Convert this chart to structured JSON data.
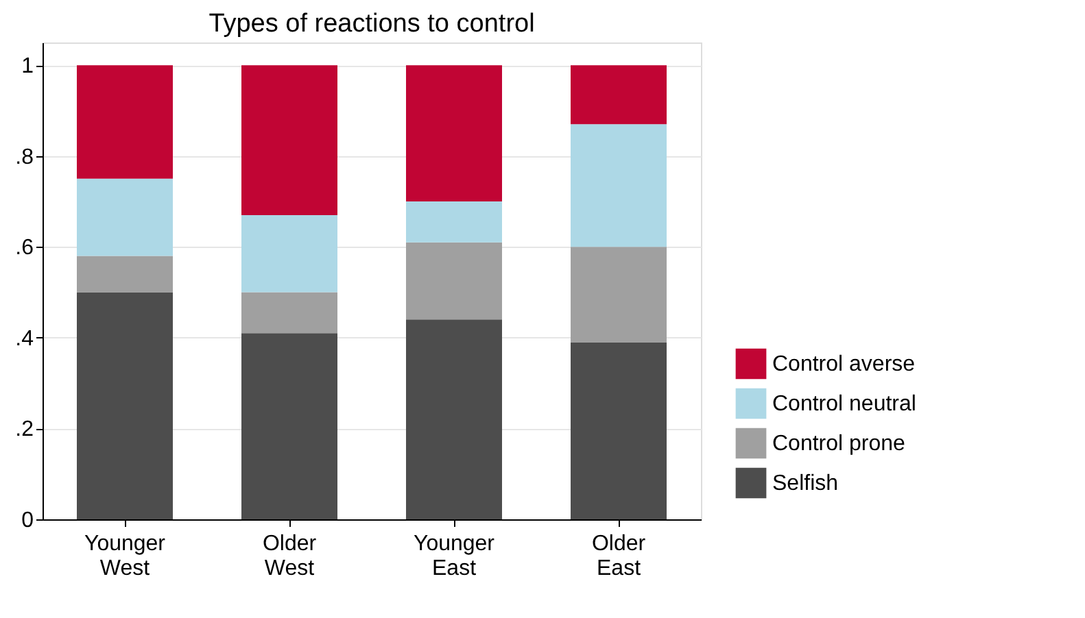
{
  "chart_data": {
    "type": "bar",
    "title": "Types of reactions to control",
    "stacked": true,
    "categories": [
      "Younger West",
      "Older West",
      "Younger East",
      "Older East"
    ],
    "series": [
      {
        "name": "Selfish",
        "color": "#4d4d4d",
        "values": [
          0.5,
          0.41,
          0.44,
          0.39
        ]
      },
      {
        "name": "Control prone",
        "color": "#a0a0a0",
        "values": [
          0.08,
          0.09,
          0.17,
          0.21
        ]
      },
      {
        "name": "Control neutral",
        "color": "#add8e6",
        "values": [
          0.17,
          0.17,
          0.09,
          0.27
        ]
      },
      {
        "name": "Control averse",
        "color": "#c10534",
        "values": [
          0.25,
          0.33,
          0.3,
          0.13
        ]
      }
    ],
    "ylim": [
      0,
      1.05
    ],
    "yticks": [
      0,
      {
        "value": 0.2,
        "label": ".2"
      },
      {
        "value": 0.4,
        "label": ".4"
      },
      {
        "value": 0.6,
        "label": ".6"
      },
      {
        "value": 0.8,
        "label": ".8"
      },
      1
    ],
    "grid": "y",
    "legend": "bottom right"
  }
}
